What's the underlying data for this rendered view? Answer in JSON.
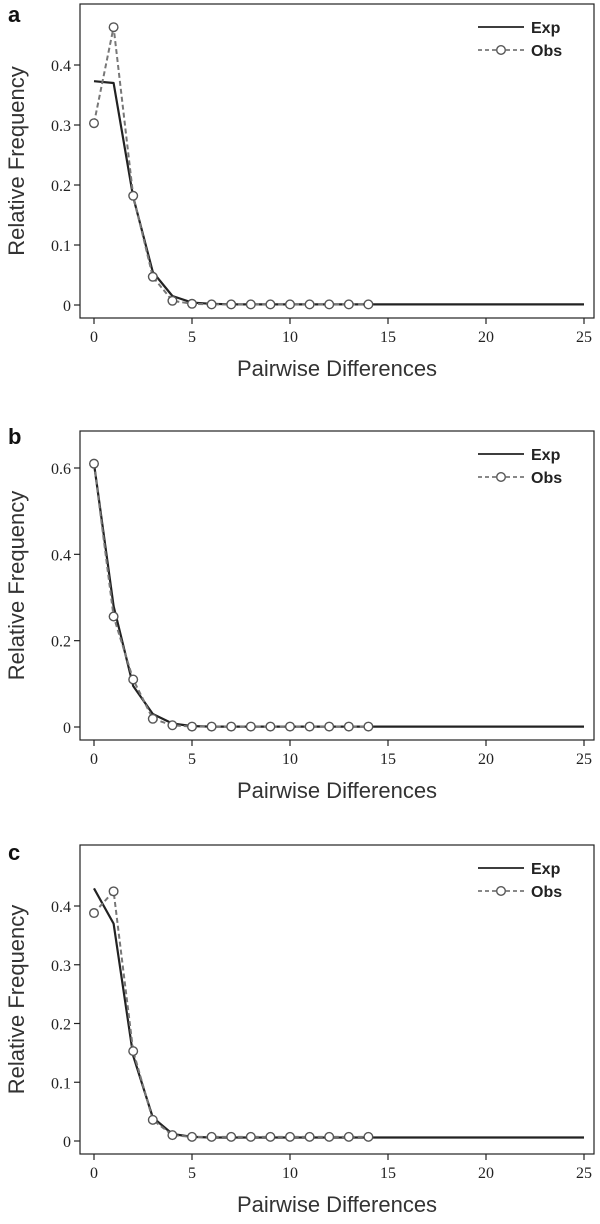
{
  "chart_data": [
    {
      "type": "line",
      "panel_label": "a",
      "xlabel": "Pairwise Differences",
      "ylabel": "Relative Frequency",
      "xlim": [
        0,
        25
      ],
      "ylim": [
        0,
        0.45
      ],
      "xticks": [
        0,
        5,
        10,
        15,
        20,
        25
      ],
      "yticks": [
        0,
        0.1,
        0.2,
        0.3,
        0.4
      ],
      "ytick_labels": [
        "0",
        "0.1",
        "0.2",
        "0.3",
        "0.4"
      ],
      "grid": false,
      "legend_placement": "top-right",
      "series": [
        {
          "name": "Exp",
          "style": "solid",
          "color": "#222222",
          "x": [
            0,
            1,
            2,
            3,
            4,
            5,
            6,
            7,
            8,
            9,
            10,
            11,
            12,
            13,
            14,
            15,
            16,
            17,
            18,
            19,
            20,
            21,
            22,
            23,
            24,
            25
          ],
          "y": [
            0.373,
            0.37,
            0.18,
            0.055,
            0.015,
            0.004,
            0.002,
            0.001,
            0.001,
            0.001,
            0.001,
            0.001,
            0.001,
            0.001,
            0.001,
            0.001,
            0.001,
            0.001,
            0.001,
            0.001,
            0.001,
            0.001,
            0.001,
            0.001,
            0.001,
            0.001
          ]
        },
        {
          "name": "Obs",
          "style": "dashed",
          "marker": "circle",
          "color": "#777777",
          "x": [
            0,
            1,
            2,
            3,
            4,
            5,
            6,
            7,
            8,
            9,
            10,
            11,
            12,
            13,
            14
          ],
          "y": [
            0.303,
            0.463,
            0.182,
            0.047,
            0.007,
            0.002,
            0.001,
            0.001,
            0.001,
            0.001,
            0.001,
            0.001,
            0.001,
            0.001,
            0.001
          ]
        }
      ]
    },
    {
      "type": "line",
      "panel_label": "b",
      "xlabel": "Pairwise Differences",
      "ylabel": "Relative Frequency",
      "xlim": [
        0,
        25
      ],
      "ylim": [
        0,
        0.63
      ],
      "xticks": [
        0,
        5,
        10,
        15,
        20,
        25
      ],
      "yticks": [
        0,
        0.2,
        0.4,
        0.6
      ],
      "ytick_labels": [
        "0",
        "0.2",
        "0.4",
        "0.6"
      ],
      "grid": false,
      "legend_placement": "top-right",
      "series": [
        {
          "name": "Exp",
          "style": "solid",
          "color": "#222222",
          "x": [
            0,
            1,
            2,
            3,
            4,
            5,
            6,
            7,
            8,
            9,
            10,
            11,
            12,
            13,
            14,
            15,
            16,
            17,
            18,
            19,
            20,
            21,
            22,
            23,
            24,
            25
          ],
          "y": [
            0.61,
            0.28,
            0.095,
            0.03,
            0.008,
            0.002,
            0.001,
            0.001,
            0.001,
            0.001,
            0.001,
            0.001,
            0.001,
            0.001,
            0.001,
            0.001,
            0.001,
            0.001,
            0.001,
            0.001,
            0.001,
            0.001,
            0.001,
            0.001,
            0.001,
            0.001
          ]
        },
        {
          "name": "Obs",
          "style": "dashed",
          "marker": "circle",
          "color": "#777777",
          "x": [
            0,
            1,
            2,
            3,
            4,
            5,
            6,
            7,
            8,
            9,
            10,
            11,
            12,
            13,
            14
          ],
          "y": [
            0.61,
            0.256,
            0.11,
            0.019,
            0.004,
            0.001,
            0.001,
            0.001,
            0.001,
            0.001,
            0.001,
            0.001,
            0.001,
            0.001,
            0.001
          ]
        }
      ]
    },
    {
      "type": "line",
      "panel_label": "c",
      "xlabel": "Pairwise Differences",
      "ylabel": "Relative Frequency",
      "xlim": [
        0,
        25
      ],
      "ylim": [
        0,
        0.45
      ],
      "xticks": [
        0,
        5,
        10,
        15,
        20,
        25
      ],
      "yticks": [
        0,
        0.1,
        0.2,
        0.3,
        0.4
      ],
      "ytick_labels": [
        "0",
        "0.1",
        "0.2",
        "0.3",
        "0.4"
      ],
      "grid": false,
      "legend_placement": "top-right",
      "series": [
        {
          "name": "Exp",
          "style": "solid",
          "color": "#222222",
          "x": [
            0,
            1,
            2,
            3,
            4,
            5,
            6,
            7,
            8,
            9,
            10,
            11,
            12,
            13,
            14,
            15,
            16,
            17,
            18,
            19,
            20,
            21,
            22,
            23,
            24,
            25
          ],
          "y": [
            0.43,
            0.37,
            0.145,
            0.04,
            0.012,
            0.007,
            0.006,
            0.006,
            0.006,
            0.006,
            0.006,
            0.006,
            0.006,
            0.006,
            0.006,
            0.006,
            0.006,
            0.006,
            0.006,
            0.006,
            0.006,
            0.006,
            0.006,
            0.006,
            0.006,
            0.006
          ]
        },
        {
          "name": "Obs",
          "style": "dashed",
          "marker": "circle",
          "color": "#777777",
          "x": [
            0,
            1,
            2,
            3,
            4,
            5,
            6,
            7,
            8,
            9,
            10,
            11,
            12,
            13,
            14
          ],
          "y": [
            0.388,
            0.425,
            0.153,
            0.036,
            0.01,
            0.007,
            0.007,
            0.007,
            0.007,
            0.007,
            0.007,
            0.007,
            0.007,
            0.007,
            0.007
          ]
        }
      ]
    }
  ]
}
